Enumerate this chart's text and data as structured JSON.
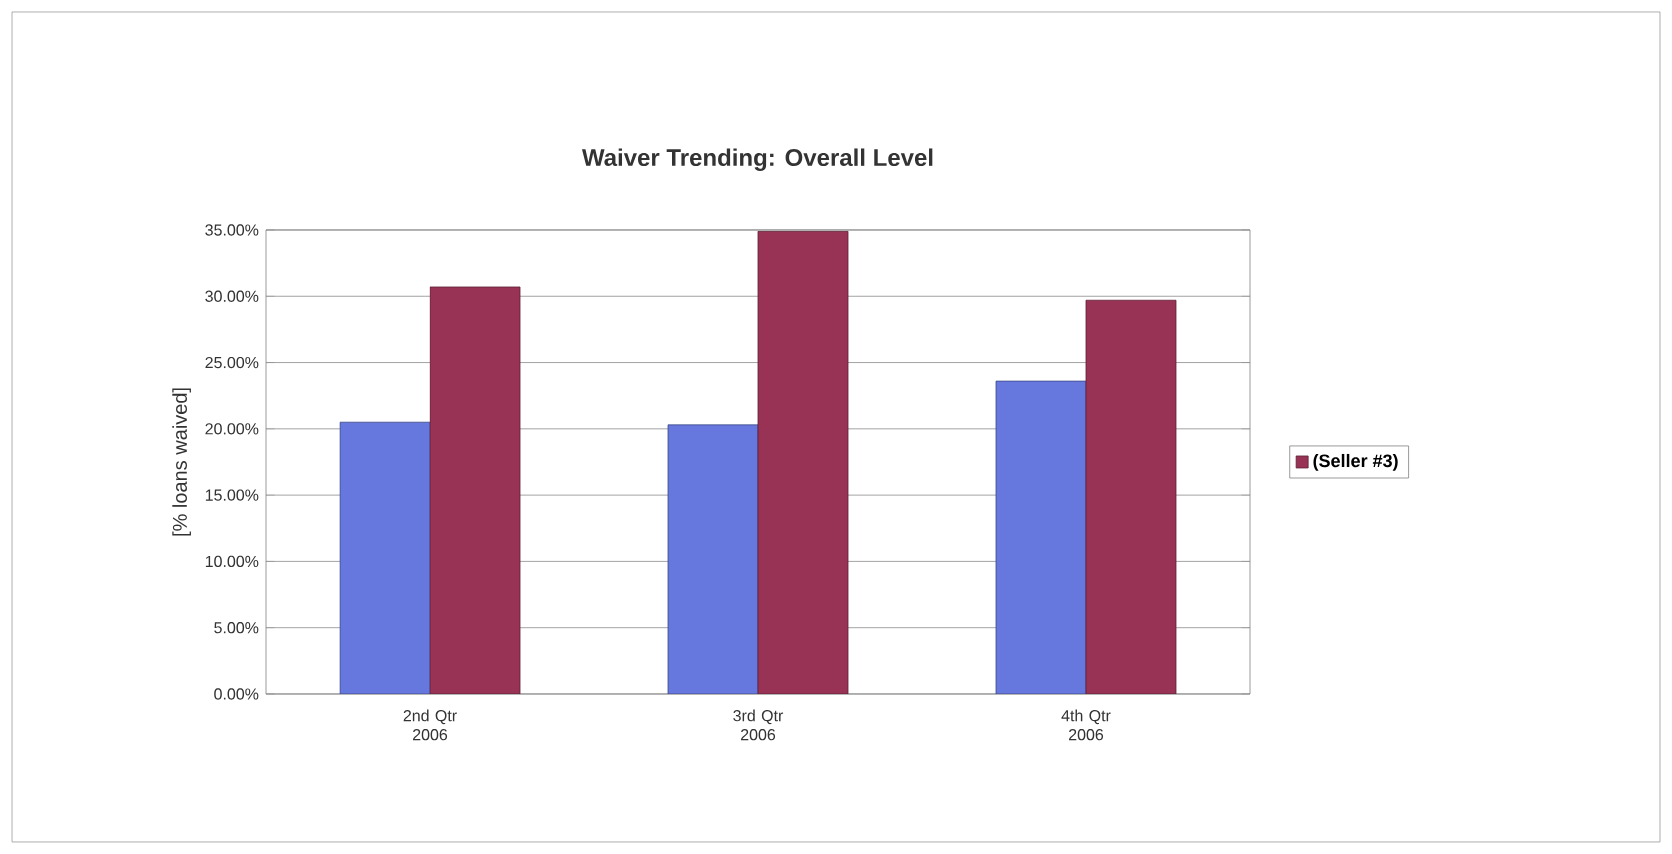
{
  "chart_data": {
    "type": "bar",
    "title": "Waiver Trending: Overall Level",
    "ylabel": "[% loans waived]",
    "categories": [
      "2nd Qtr 2006",
      "3rd Qtr 2006",
      "4th Qtr 2006"
    ],
    "series": [
      {
        "color": "#6677dd",
        "values": [
          20.5,
          20.3,
          23.6
        ]
      },
      {
        "name": "(Seller #3)",
        "color": "#993355",
        "values": [
          30.7,
          34.9,
          29.7
        ]
      }
    ],
    "ylim": [
      0,
      35
    ],
    "yticks": [
      {
        "value": 0,
        "label": "0.00%"
      },
      {
        "value": 5,
        "label": "5.00%"
      },
      {
        "value": 10,
        "label": "10.00%"
      },
      {
        "value": 15,
        "label": "15.00%"
      },
      {
        "value": 20,
        "label": "20.00%"
      },
      {
        "value": 25,
        "label": "25.00%"
      },
      {
        "value": 30,
        "label": "30.00%"
      },
      {
        "value": 35,
        "label": "35.00%"
      }
    ],
    "grid": "y",
    "legend": "right"
  }
}
